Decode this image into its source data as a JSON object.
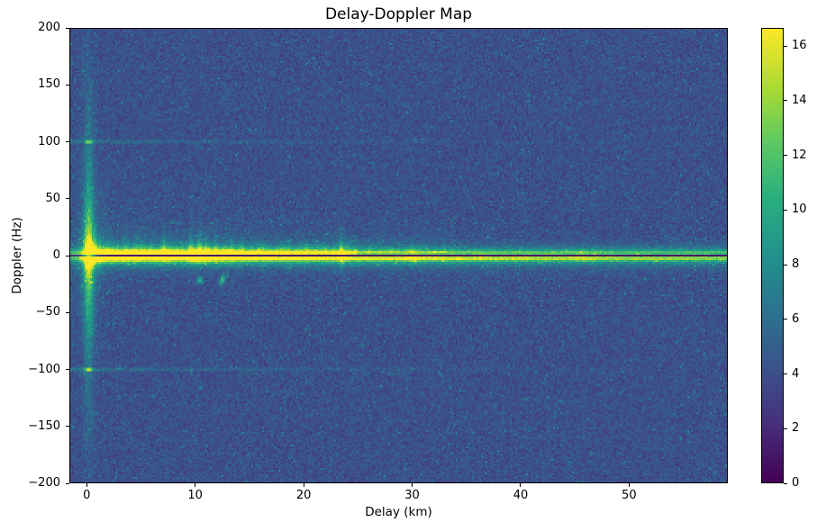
{
  "chart_data": {
    "type": "heatmap",
    "title": "Delay-Doppler Map",
    "colormap": "viridis",
    "x_axis": {
      "label": "Delay (km)",
      "min": -1.6,
      "max": 59.1,
      "ticks": [
        {
          "v": 0,
          "label": "0"
        },
        {
          "v": 10,
          "label": "10"
        },
        {
          "v": 20,
          "label": "20"
        },
        {
          "v": 30,
          "label": "30"
        },
        {
          "v": 40,
          "label": "40"
        },
        {
          "v": 50,
          "label": "50"
        }
      ]
    },
    "y_axis": {
      "label": "Doppler (Hz)",
      "min": -200,
      "max": 200,
      "ticks": [
        {
          "v": 200,
          "label": "200"
        },
        {
          "v": 150,
          "label": "150"
        },
        {
          "v": 100,
          "label": "100"
        },
        {
          "v": 50,
          "label": "50"
        },
        {
          "v": 0,
          "label": "0"
        },
        {
          "v": -50,
          "label": "−50"
        },
        {
          "v": -100,
          "label": "−100"
        },
        {
          "v": -150,
          "label": "−150"
        },
        {
          "v": -200,
          "label": "−200"
        }
      ]
    },
    "colorbar": {
      "vmin": 0,
      "vmax": 16.66,
      "ticks": [
        {
          "v": 0,
          "label": "0"
        },
        {
          "v": 2,
          "label": "2"
        },
        {
          "v": 4,
          "label": "4"
        },
        {
          "v": 6,
          "label": "6"
        },
        {
          "v": 8,
          "label": "8"
        },
        {
          "v": 10,
          "label": "10"
        },
        {
          "v": 12,
          "label": "12"
        },
        {
          "v": 14,
          "label": "14"
        },
        {
          "v": 16,
          "label": "16"
        }
      ]
    },
    "features": {
      "noise": {
        "base": 2.6,
        "spread": 1.5,
        "spike_prob": 0.03,
        "spike_amp": 2.2
      },
      "zero_doppler_ridge": {
        "amp_base": 7.0,
        "amp_decaying": 8.0,
        "decay_km": 45,
        "neg_delay_amp": 6.5,
        "notch_halfwidth_hz": 1.05,
        "notch_value": 0.9,
        "core_halfwidth_hz": 3.2,
        "glow_decay_hz": 3.5,
        "above_factor_far": 0.78,
        "bumps": [
          [
            0.15,
            2.8,
            0.4
          ],
          [
            7.0,
            1.2,
            0.5
          ],
          [
            9.6,
            2.0,
            0.4
          ],
          [
            10.4,
            2.6,
            0.5
          ],
          [
            11.3,
            1.6,
            0.4
          ],
          [
            12.2,
            1.2,
            0.4
          ],
          [
            13.1,
            1.0,
            0.3
          ],
          [
            23.5,
            2.6,
            0.25
          ],
          [
            30.0,
            1.4,
            0.6
          ],
          [
            45.8,
            0.9,
            0.8
          ]
        ]
      },
      "direct_path_streak": {
        "delay_km": 0.1,
        "amp": 10,
        "sigma_km": 0.32,
        "doppler_decay_hz": 70,
        "halo_amp": 3.5,
        "halo_sigma_km": 0.9,
        "halo_decay_hz": 35
      },
      "upward_glow": {
        "amp": 3.2,
        "doppler_decay_hz": 13,
        "delay_decay_km": 22,
        "max_delay_km": 34
      },
      "downward_glow": {
        "amp": 1.6,
        "doppler_decay_hz": 7,
        "delay_decay_km": 28
      },
      "vertical_streaks": [
        [
          7.0,
          4.0,
          10,
          3
        ],
        [
          8.3,
          2.5,
          7,
          2
        ],
        [
          9.6,
          5.0,
          12,
          3
        ],
        [
          10.4,
          6.0,
          14,
          4
        ],
        [
          11.0,
          4.5,
          9,
          3
        ],
        [
          11.8,
          3.5,
          9,
          3
        ],
        [
          12.6,
          3.0,
          7,
          2
        ],
        [
          13.3,
          2.5,
          6,
          2
        ],
        [
          14.3,
          2.0,
          5,
          2
        ],
        [
          16.1,
          2.5,
          6,
          2
        ],
        [
          18.0,
          2.0,
          5,
          2
        ],
        [
          20.4,
          2.0,
          5,
          2
        ],
        [
          21.8,
          1.8,
          4,
          2
        ],
        [
          23.5,
          7.0,
          10,
          6
        ],
        [
          26.0,
          1.8,
          4,
          2
        ],
        [
          28.0,
          1.5,
          4,
          2
        ],
        [
          30.0,
          3.0,
          5,
          4
        ],
        [
          33.0,
          1.6,
          4,
          2
        ],
        [
          36.0,
          1.4,
          3,
          2
        ],
        [
          40.0,
          1.2,
          3,
          2
        ],
        [
          45.8,
          1.5,
          3,
          2
        ]
      ],
      "scatter_spots": [
        [
          10.35,
          -22.0,
          7.0,
          0.18,
          2.2
        ],
        [
          12.3,
          -24.0,
          5.0,
          0.15,
          2.0
        ],
        [
          12.5,
          -19.5,
          7.0,
          0.15,
          2.2
        ]
      ],
      "ambiguity_lines": [
        {
          "doppler_hz": 100,
          "halfwidth_hz": 1.3,
          "amp": 1.8,
          "decay_km": 18,
          "spot_amp": 5
        },
        {
          "doppler_hz": -100,
          "halfwidth_hz": 1.3,
          "amp": 2.0,
          "decay_km": 20,
          "spot_amp": 7
        }
      ]
    }
  }
}
